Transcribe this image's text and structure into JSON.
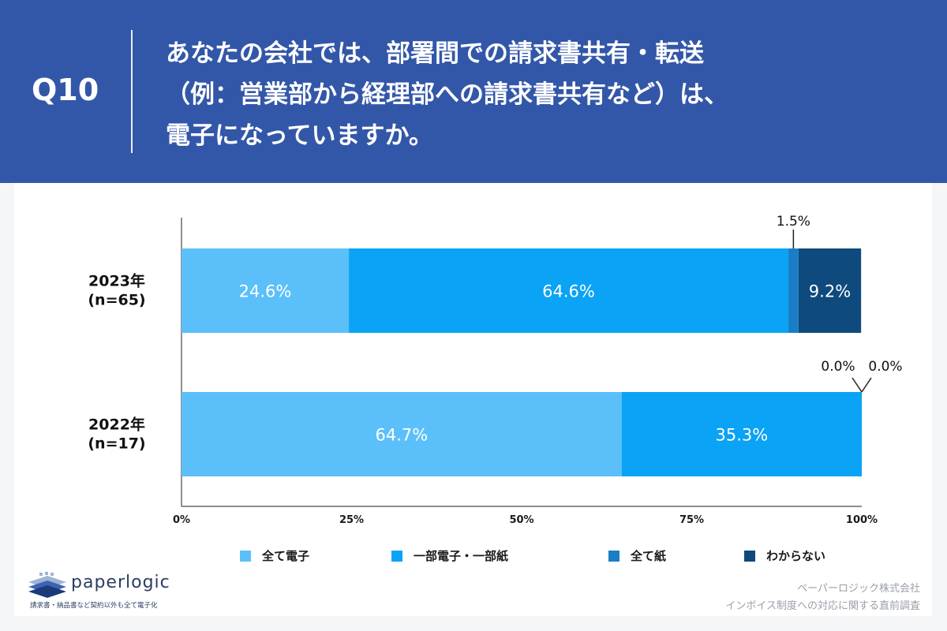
{
  "question": {
    "number": "Q10",
    "lines": [
      "あなたの会社では、部署間での請求書共有・転送",
      "（例：営業部から経理部への請求書共有など）は、",
      "電子になっていますか。"
    ]
  },
  "chart_data": {
    "type": "bar",
    "orientation": "horizontal",
    "stacked": true,
    "categories": [
      "2023年\n(n=65)",
      "2022年\n(n=17)"
    ],
    "series": [
      {
        "name": "全て電子",
        "color": "#5bc0fa",
        "values": [
          24.6,
          64.7
        ]
      },
      {
        "name": "一部電子・一部紙",
        "color": "#0aa3f5",
        "values": [
          64.6,
          35.3
        ]
      },
      {
        "name": "全て紙",
        "color": "#1a7ec7",
        "values": [
          1.5,
          0.0
        ]
      },
      {
        "name": "わからない",
        "color": "#0e4a7e",
        "values": [
          9.2,
          0.0
        ]
      }
    ],
    "xticks": [
      "0%",
      "25%",
      "50%",
      "75%",
      "100%"
    ],
    "xlim": [
      0,
      100
    ],
    "legend_position": "bottom",
    "grid": false
  },
  "footer": {
    "logo_name": "paperlogic",
    "logo_tagline": "請求書・納品書など契約以外も全て電子化",
    "source_lines": [
      "ペーパーロジック株式会社",
      "インボイス制度への対応に関する直前調査"
    ]
  }
}
